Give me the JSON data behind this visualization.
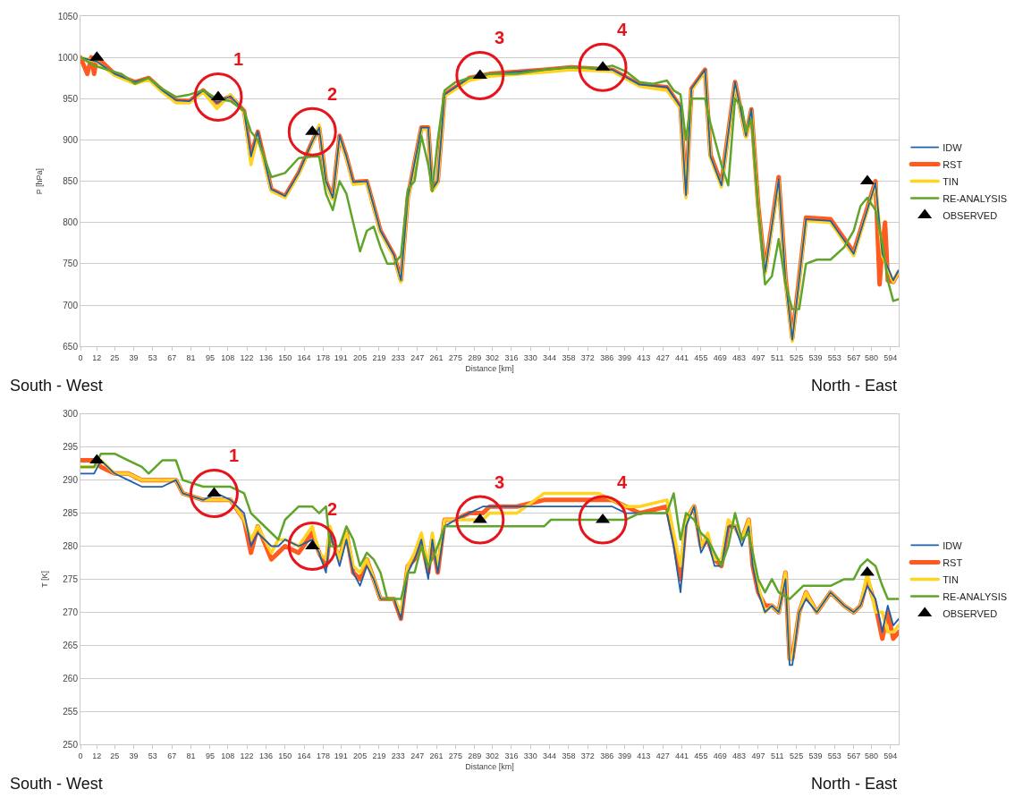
{
  "chart_data": [
    {
      "type": "line",
      "xlabel": "Distance [km]",
      "ylabel": "P [hPa]",
      "xlim": [
        0,
        600
      ],
      "xticks": [
        0,
        12,
        25,
        39,
        53,
        67,
        81,
        95,
        108,
        122,
        136,
        150,
        164,
        178,
        191,
        205,
        219,
        233,
        247,
        261,
        275,
        289,
        302,
        316,
        330,
        344,
        358,
        372,
        386,
        399,
        413,
        427,
        441,
        455,
        469,
        483,
        497,
        511,
        525,
        539,
        553,
        567,
        580,
        594
      ],
      "ylim": [
        650,
        1050
      ],
      "yticks": [
        650,
        700,
        750,
        800,
        850,
        900,
        950,
        1000,
        1050
      ],
      "grid": "y",
      "legend": "right",
      "line_style": "solid",
      "marker": "none",
      "series": [
        {
          "name": "IDW",
          "color": "#1f5fa6",
          "x": [
            0,
            12,
            25,
            40,
            50,
            60,
            70,
            80,
            90,
            100,
            110,
            120,
            125,
            130,
            140,
            150,
            160,
            170,
            175,
            180,
            185,
            190,
            195,
            200,
            210,
            220,
            230,
            235,
            240,
            250,
            255,
            258,
            262,
            267,
            285,
            300,
            340,
            360,
            390,
            410,
            430,
            440,
            444,
            448,
            458,
            462,
            470,
            480,
            488,
            492,
            497,
            502,
            512,
            517,
            522,
            532,
            550,
            567,
            583,
            588,
            596,
            600
          ],
          "values": [
            1000,
            995,
            980,
            970,
            975,
            960,
            948,
            947,
            960,
            945,
            953,
            935,
            880,
            910,
            840,
            832,
            860,
            898,
            915,
            850,
            830,
            905,
            880,
            849,
            850,
            790,
            760,
            730,
            830,
            915,
            915,
            840,
            850,
            955,
            975,
            980,
            985,
            988,
            985,
            967,
            964,
            940,
            833,
            962,
            985,
            880,
            845,
            970,
            905,
            937,
            818,
            740,
            852,
            730,
            658,
            804,
            802,
            762,
            848,
            762,
            730,
            742
          ]
        },
        {
          "name": "RST",
          "color": "#ff5a1f",
          "x": [
            0,
            5,
            8,
            10,
            12,
            25,
            40,
            50,
            60,
            70,
            80,
            90,
            100,
            110,
            120,
            125,
            130,
            140,
            150,
            160,
            170,
            175,
            180,
            185,
            190,
            195,
            200,
            210,
            220,
            230,
            235,
            240,
            250,
            255,
            258,
            262,
            267,
            285,
            300,
            340,
            360,
            390,
            410,
            430,
            440,
            444,
            448,
            458,
            462,
            470,
            480,
            488,
            492,
            497,
            502,
            512,
            517,
            522,
            532,
            550,
            567,
            583,
            586,
            588,
            590,
            592,
            596,
            600
          ],
          "values": [
            1000,
            980,
            1000,
            980,
            1000,
            980,
            970,
            975,
            960,
            948,
            947,
            960,
            945,
            953,
            935,
            880,
            910,
            840,
            832,
            860,
            898,
            915,
            850,
            830,
            905,
            880,
            849,
            850,
            790,
            760,
            730,
            830,
            915,
            915,
            840,
            850,
            955,
            975,
            980,
            985,
            988,
            985,
            967,
            964,
            940,
            835,
            962,
            985,
            882,
            847,
            970,
            905,
            937,
            820,
            742,
            855,
            733,
            660,
            806,
            804,
            764,
            850,
            725,
            770,
            800,
            730,
            728,
            740
          ]
        },
        {
          "name": "TIN",
          "color": "#ffd320",
          "x": [
            0,
            12,
            25,
            40,
            50,
            60,
            70,
            80,
            90,
            100,
            110,
            120,
            125,
            130,
            140,
            150,
            160,
            170,
            175,
            180,
            185,
            190,
            195,
            200,
            210,
            220,
            230,
            235,
            240,
            250,
            255,
            258,
            262,
            267,
            285,
            300,
            340,
            360,
            390,
            410,
            430,
            440,
            444,
            448,
            458,
            462,
            470,
            480,
            488,
            492,
            497,
            502,
            512,
            517,
            522,
            532,
            550,
            567,
            583,
            588,
            596,
            600
          ],
          "values": [
            1000,
            995,
            978,
            968,
            973,
            958,
            945,
            945,
            958,
            938,
            955,
            933,
            870,
            905,
            838,
            830,
            858,
            896,
            918,
            848,
            828,
            903,
            878,
            846,
            848,
            788,
            758,
            728,
            828,
            913,
            913,
            838,
            848,
            953,
            972,
            977,
            982,
            985,
            983,
            965,
            960,
            938,
            830,
            960,
            983,
            878,
            843,
            968,
            903,
            935,
            815,
            738,
            850,
            728,
            656,
            802,
            800,
            760,
            847,
            760,
            728,
            740
          ]
        },
        {
          "name": "RE-ANALYSIS",
          "color": "#5ea52a",
          "x": [
            0,
            10,
            20,
            30,
            40,
            50,
            60,
            70,
            80,
            90,
            100,
            110,
            120,
            125,
            130,
            140,
            150,
            160,
            170,
            175,
            180,
            185,
            190,
            195,
            200,
            205,
            210,
            215,
            220,
            225,
            230,
            235,
            240,
            245,
            250,
            255,
            258,
            262,
            267,
            275,
            285,
            295,
            300,
            320,
            340,
            360,
            380,
            390,
            400,
            410,
            420,
            430,
            435,
            440,
            444,
            448,
            452,
            458,
            462,
            470,
            475,
            480,
            485,
            488,
            492,
            497,
            502,
            507,
            512,
            517,
            522,
            527,
            532,
            540,
            550,
            560,
            567,
            572,
            577,
            583,
            588,
            592,
            596,
            600
          ],
          "values": [
            1000,
            990,
            985,
            980,
            968,
            975,
            962,
            952,
            955,
            960,
            950,
            947,
            935,
            910,
            900,
            855,
            860,
            878,
            880,
            880,
            835,
            815,
            850,
            835,
            800,
            765,
            790,
            795,
            770,
            750,
            750,
            760,
            840,
            850,
            905,
            870,
            838,
            900,
            960,
            970,
            975,
            978,
            980,
            980,
            985,
            988,
            987,
            990,
            983,
            970,
            968,
            972,
            960,
            955,
            900,
            950,
            950,
            950,
            920,
            870,
            845,
            950,
            940,
            910,
            925,
            815,
            725,
            735,
            780,
            725,
            695,
            695,
            750,
            755,
            755,
            770,
            790,
            820,
            830,
            815,
            775,
            730,
            705,
            707
          ]
        },
        {
          "name": "OBSERVED",
          "color": "#000000",
          "type": "scatter",
          "marker": "triangle",
          "x": [
            12,
            101,
            170,
            293,
            383,
            577
          ],
          "values": [
            1000,
            952,
            910,
            978,
            988,
            850
          ]
        }
      ],
      "annotations": [
        {
          "text": "1",
          "x": 101,
          "y": 952
        },
        {
          "text": "2",
          "x": 170,
          "y": 910
        },
        {
          "text": "3",
          "x": 293,
          "y": 978
        },
        {
          "text": "4",
          "x": 383,
          "y": 988
        },
        "South - West",
        "North - East"
      ]
    },
    {
      "type": "line",
      "xlabel": "Distance [km]",
      "ylabel": "T [K]",
      "xlim": [
        0,
        600
      ],
      "xticks": [
        0,
        12,
        25,
        39,
        53,
        67,
        81,
        95,
        108,
        122,
        136,
        150,
        164,
        178,
        191,
        205,
        219,
        233,
        247,
        261,
        275,
        289,
        302,
        316,
        330,
        344,
        358,
        372,
        386,
        399,
        413,
        427,
        441,
        455,
        469,
        483,
        497,
        511,
        525,
        539,
        553,
        567,
        580,
        594
      ],
      "ylim": [
        250,
        300
      ],
      "yticks": [
        250,
        255,
        260,
        265,
        270,
        275,
        280,
        285,
        290,
        295,
        300
      ],
      "grid": "y",
      "legend": "right",
      "line_style": "solid",
      "marker": "none",
      "series": [
        {
          "name": "IDW",
          "color": "#1f5fa6",
          "x": [
            0,
            10,
            15,
            25,
            35,
            45,
            60,
            70,
            75,
            90,
            100,
            110,
            120,
            125,
            130,
            140,
            145,
            150,
            160,
            170,
            175,
            180,
            183,
            190,
            195,
            200,
            205,
            210,
            215,
            220,
            225,
            230,
            235,
            240,
            245,
            250,
            255,
            258,
            262,
            267,
            275,
            285,
            295,
            300,
            320,
            340,
            360,
            380,
            390,
            400,
            410,
            430,
            435,
            440,
            444,
            450,
            455,
            460,
            465,
            470,
            475,
            480,
            485,
            490,
            493,
            497,
            502,
            507,
            512,
            517,
            520,
            522,
            527,
            532,
            540,
            550,
            560,
            567,
            572,
            577,
            583,
            588,
            592,
            596,
            600
          ],
          "values": [
            291,
            291,
            293,
            291,
            290,
            289,
            289,
            290,
            288,
            287,
            288,
            287,
            285,
            280,
            282,
            280,
            280,
            281,
            280,
            281,
            279,
            276,
            282,
            277,
            281,
            276,
            274,
            277,
            275,
            272,
            272,
            272,
            269,
            276,
            278,
            281,
            275,
            281,
            276,
            283,
            284,
            285,
            286,
            286,
            286,
            286,
            286,
            286,
            286,
            285,
            285,
            285,
            280,
            273,
            283,
            286,
            279,
            281,
            277,
            277,
            283,
            283,
            280,
            283,
            277,
            273,
            270,
            271,
            270,
            275,
            262,
            262,
            270,
            272,
            270,
            273,
            271,
            270,
            271,
            274,
            272,
            267,
            271,
            268,
            269
          ]
        },
        {
          "name": "RST",
          "color": "#ff5a1f",
          "x": [
            0,
            10,
            15,
            25,
            35,
            45,
            60,
            70,
            75,
            90,
            100,
            110,
            120,
            125,
            130,
            140,
            145,
            150,
            160,
            170,
            175,
            180,
            183,
            190,
            195,
            200,
            205,
            210,
            215,
            220,
            225,
            230,
            235,
            240,
            245,
            250,
            255,
            258,
            262,
            267,
            275,
            285,
            295,
            300,
            320,
            340,
            360,
            380,
            390,
            400,
            410,
            430,
            435,
            440,
            444,
            450,
            455,
            460,
            465,
            470,
            475,
            480,
            485,
            490,
            493,
            497,
            502,
            507,
            512,
            517,
            520,
            522,
            527,
            532,
            540,
            550,
            560,
            567,
            572,
            577,
            583,
            588,
            592,
            596,
            600
          ],
          "values": [
            293,
            293,
            292,
            291,
            291,
            290,
            290,
            290,
            288,
            287,
            287,
            287,
            284,
            279,
            283,
            278,
            279,
            280,
            279,
            282,
            279,
            277,
            282,
            278,
            282,
            276,
            275,
            278,
            275,
            272,
            272,
            272,
            269,
            277,
            278,
            281,
            276,
            281,
            276,
            284,
            284,
            285,
            285,
            286,
            286,
            287,
            287,
            287,
            287,
            286,
            285,
            286,
            281,
            275,
            284,
            286,
            280,
            281,
            278,
            277,
            283,
            283,
            281,
            284,
            277,
            273,
            271,
            271,
            270,
            276,
            263,
            263,
            270,
            273,
            270,
            273,
            271,
            270,
            271,
            275,
            271,
            266,
            270,
            266,
            267
          ]
        },
        {
          "name": "TIN",
          "color": "#ffd320",
          "x": [
            0,
            10,
            15,
            25,
            35,
            45,
            60,
            70,
            75,
            90,
            100,
            110,
            120,
            125,
            130,
            140,
            145,
            150,
            160,
            170,
            175,
            180,
            183,
            190,
            195,
            200,
            205,
            210,
            215,
            220,
            225,
            230,
            235,
            240,
            245,
            250,
            255,
            258,
            262,
            267,
            275,
            285,
            295,
            300,
            320,
            340,
            360,
            380,
            390,
            400,
            410,
            430,
            435,
            440,
            444,
            450,
            455,
            460,
            465,
            470,
            475,
            480,
            485,
            490,
            493,
            497,
            502,
            507,
            512,
            517,
            520,
            522,
            527,
            532,
            540,
            550,
            560,
            567,
            572,
            577,
            583,
            588,
            592,
            596,
            600
          ],
          "values": [
            292,
            292,
            293,
            291,
            291,
            290,
            290,
            290,
            288,
            287,
            287,
            287,
            284,
            281,
            283,
            279,
            281,
            281,
            280,
            283,
            279,
            278,
            283,
            278,
            282,
            277,
            276,
            278,
            275,
            272,
            272,
            272,
            270,
            277,
            279,
            282,
            277,
            282,
            277,
            284,
            284,
            284,
            284,
            285,
            285,
            288,
            288,
            288,
            287,
            286,
            286,
            287,
            282,
            277,
            284,
            286,
            280,
            282,
            278,
            278,
            284,
            283,
            281,
            284,
            278,
            274,
            270,
            271,
            270,
            276,
            263,
            263,
            270,
            273,
            270,
            273,
            271,
            270,
            271,
            276,
            270,
            270,
            267,
            267,
            268
          ]
        },
        {
          "name": "RE-ANALYSIS",
          "color": "#5ea52a",
          "x": [
            0,
            10,
            15,
            25,
            35,
            45,
            50,
            60,
            70,
            75,
            90,
            100,
            110,
            120,
            125,
            130,
            140,
            145,
            150,
            160,
            170,
            175,
            180,
            183,
            190,
            195,
            200,
            205,
            210,
            215,
            220,
            225,
            230,
            235,
            240,
            245,
            250,
            255,
            258,
            262,
            267,
            275,
            285,
            295,
            300,
            320,
            340,
            345,
            360,
            380,
            400,
            410,
            430,
            435,
            440,
            444,
            450,
            455,
            460,
            465,
            470,
            475,
            480,
            485,
            490,
            493,
            497,
            502,
            507,
            512,
            520,
            530,
            540,
            550,
            560,
            567,
            572,
            577,
            583,
            588,
            592,
            596,
            600
          ],
          "values": [
            292,
            292,
            294,
            294,
            293,
            292,
            291,
            293,
            293,
            290,
            289,
            289,
            289,
            288,
            285,
            284,
            282,
            281,
            284,
            286,
            286,
            285,
            286,
            280,
            280,
            283,
            281,
            277,
            279,
            278,
            276,
            272,
            272,
            272,
            276,
            276,
            280,
            277,
            278,
            280,
            283,
            283,
            283,
            283,
            283,
            283,
            283,
            284,
            284,
            284,
            284,
            285,
            285,
            288,
            281,
            285,
            284,
            282,
            281,
            279,
            277,
            280,
            285,
            281,
            282,
            279,
            275,
            273,
            275,
            273,
            272,
            274,
            274,
            274,
            275,
            275,
            277,
            278,
            277,
            274,
            272,
            272,
            272
          ]
        },
        {
          "name": "OBSERVED",
          "color": "#000000",
          "type": "scatter",
          "marker": "triangle",
          "x": [
            12,
            98,
            170,
            293,
            383,
            577
          ],
          "values": [
            293,
            288,
            280,
            284,
            284,
            276
          ]
        }
      ],
      "annotations": [
        {
          "text": "1",
          "x": 98,
          "y": 288
        },
        {
          "text": "2",
          "x": 170,
          "y": 280
        },
        {
          "text": "3",
          "x": 293,
          "y": 284
        },
        {
          "text": "4",
          "x": 383,
          "y": 284
        },
        "South - West",
        "North - East"
      ]
    }
  ]
}
